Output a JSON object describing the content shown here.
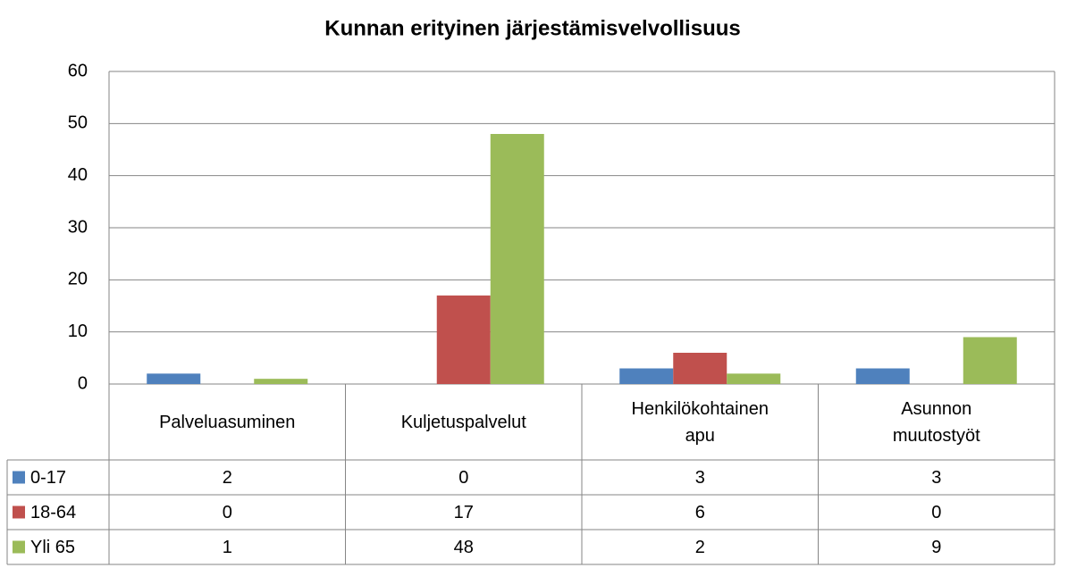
{
  "chart_data": {
    "type": "bar",
    "title": "Kunnan erityinen järjestämisvelvollisuus",
    "categories": [
      "Palveluasuminen",
      "Kuljetuspalvelut",
      "Henkilökohtainen apu",
      "Asunnon muutostyöt"
    ],
    "series": [
      {
        "name": "0-17",
        "color": "#4f81bd",
        "values": [
          2,
          0,
          3,
          3
        ]
      },
      {
        "name": "18-64",
        "color": "#c0504d",
        "values": [
          0,
          17,
          6,
          0
        ]
      },
      {
        "name": "Yli 65",
        "color": "#9bbb59",
        "values": [
          1,
          48,
          2,
          9
        ]
      }
    ],
    "ylim": [
      0,
      60
    ],
    "yticks": [
      0,
      10,
      20,
      30,
      40,
      50,
      60
    ],
    "grid": true,
    "data_table": true
  }
}
